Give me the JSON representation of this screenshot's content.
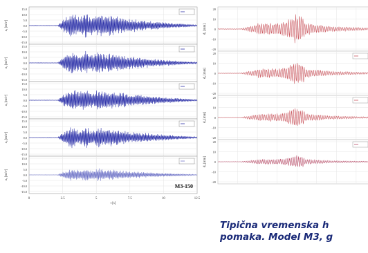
{
  "caption": {
    "lines": [
      "Tipična vremenska h",
      "pomaka. Model M3, g",
      "  "
    ]
  },
  "chart_data": [
    {
      "type": "line",
      "title": "",
      "xlabel": "t [s]",
      "xlim": [
        0,
        12.5
      ],
      "xticks": [
        "0",
        "2.5",
        "5",
        "7.5",
        "10",
        "12.5"
      ],
      "annotation": "M3-150",
      "grid": true,
      "panels": [
        {
          "ylabel": "a₁ [m/s²]",
          "ylim": [
            -15,
            15
          ],
          "legend_visible": true,
          "yticks": [
            "15.0",
            "10.0",
            "5.0",
            "0.0",
            "-5.0",
            "-10.0",
            "-15.0"
          ],
          "peak_abs": 11.5,
          "color": "#2a2fa8"
        },
        {
          "ylabel": "a₂ [m/s²]",
          "ylim": [
            -15,
            15
          ],
          "legend_visible": true,
          "yticks": [
            "15.0",
            "10.0",
            "5.0",
            "0.0",
            "-5.0",
            "-10.0",
            "-15.0"
          ],
          "peak_abs": 11.0,
          "color": "#2a2fa8"
        },
        {
          "ylabel": "a₃ [m/s²]",
          "ylim": [
            -15,
            15
          ],
          "legend_visible": true,
          "yticks": [
            "15.0",
            "10.0",
            "5.0",
            "0.0",
            "-5.0",
            "-10.0",
            "-15.0"
          ],
          "peak_abs": 10.5,
          "color": "#2a2fa8"
        },
        {
          "ylabel": "a₄ [m/s²]",
          "ylim": [
            -15,
            15
          ],
          "legend_visible": true,
          "yticks": [
            "15.0",
            "10.0",
            "5.0",
            "0.0",
            "-5.0",
            "-10.0",
            "-15.0"
          ],
          "peak_abs": 10.0,
          "color": "#2a2fa8"
        },
        {
          "ylabel": "a₅ [m/s²]",
          "ylim": [
            -15,
            15
          ],
          "legend_visible": true,
          "yticks": [
            "15.0",
            "10.0",
            "5.0",
            "0.0",
            "-5.0",
            "-10.0",
            "-15.0"
          ],
          "peak_abs": 6.0,
          "color": "#6f74c8"
        }
      ]
    },
    {
      "type": "line",
      "title": "",
      "xlabel": "",
      "grid": true,
      "panels": [
        {
          "ylabel": "d₁ [mm]",
          "ylim": [
            -20,
            20
          ],
          "legend_visible": false,
          "yticks": [
            "20",
            "10",
            "0",
            "-10",
            "-20"
          ],
          "peak_abs": 14,
          "color": "#c9545c"
        },
        {
          "ylabel": "d₂ [mm]",
          "ylim": [
            -20,
            20
          ],
          "legend_visible": true,
          "yticks": [
            "20",
            "10",
            "0",
            "-10",
            "-20"
          ],
          "peak_abs": 11,
          "color": "#c9545c"
        },
        {
          "ylabel": "d₃ [mm]",
          "ylim": [
            -20,
            20
          ],
          "legend_visible": true,
          "yticks": [
            "20",
            "10",
            "0",
            "-10",
            "-20"
          ],
          "peak_abs": 9,
          "color": "#c9545c"
        },
        {
          "ylabel": "d₄ [mm]",
          "ylim": [
            -20,
            20
          ],
          "legend_visible": true,
          "yticks": [
            "20",
            "10",
            "0",
            "-10",
            "-20"
          ],
          "peak_abs": 6,
          "color": "#b74a66"
        }
      ]
    }
  ]
}
